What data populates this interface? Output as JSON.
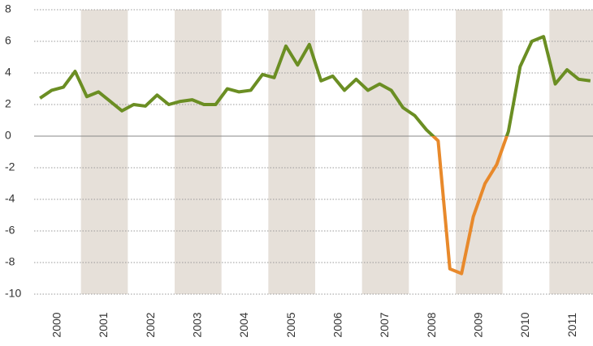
{
  "chart_data": {
    "type": "line",
    "xlim": [
      2000,
      2012
    ],
    "xticks": [
      2000,
      2001,
      2002,
      2003,
      2004,
      2005,
      2006,
      2007,
      2008,
      2009,
      2010,
      2011
    ],
    "x": [
      2000.125,
      2000.375,
      2000.625,
      2000.875,
      2001.125,
      2001.375,
      2001.625,
      2001.875,
      2002.125,
      2002.375,
      2002.625,
      2002.875,
      2003.125,
      2003.375,
      2003.625,
      2003.875,
      2004.125,
      2004.375,
      2004.625,
      2004.875,
      2005.125,
      2005.375,
      2005.625,
      2005.875,
      2006.125,
      2006.375,
      2006.625,
      2006.875,
      2007.125,
      2007.375,
      2007.625,
      2007.875,
      2008.125,
      2008.375,
      2008.625,
      2008.875,
      2009.125,
      2009.375,
      2009.625,
      2009.875,
      2010.125,
      2010.375,
      2010.625,
      2010.875,
      2011.125,
      2011.375,
      2011.625,
      2011.875
    ],
    "values": [
      2.4,
      2.9,
      3.1,
      4.1,
      2.5,
      2.8,
      2.2,
      1.6,
      2.0,
      1.9,
      2.6,
      2.0,
      2.2,
      2.3,
      2.0,
      2.0,
      3.0,
      2.8,
      2.9,
      3.9,
      3.7,
      5.7,
      4.5,
      5.8,
      3.5,
      3.8,
      2.9,
      3.6,
      2.9,
      3.3,
      2.9,
      1.8,
      1.3,
      0.4,
      -0.3,
      -8.4,
      -8.7,
      -5.1,
      -3.0,
      -1.8,
      0.3,
      4.4,
      6.0,
      6.3,
      3.3,
      4.2,
      3.6,
      3.5
    ],
    "color": "#6b8e23",
    "negative_color": "#e8892b",
    "band_color": "#e6e0d9",
    "ylim": [
      -10,
      8
    ],
    "yticks": [
      -10,
      -8,
      -6,
      -4,
      -2,
      0,
      2,
      4,
      6,
      8
    ],
    "grid": true
  }
}
